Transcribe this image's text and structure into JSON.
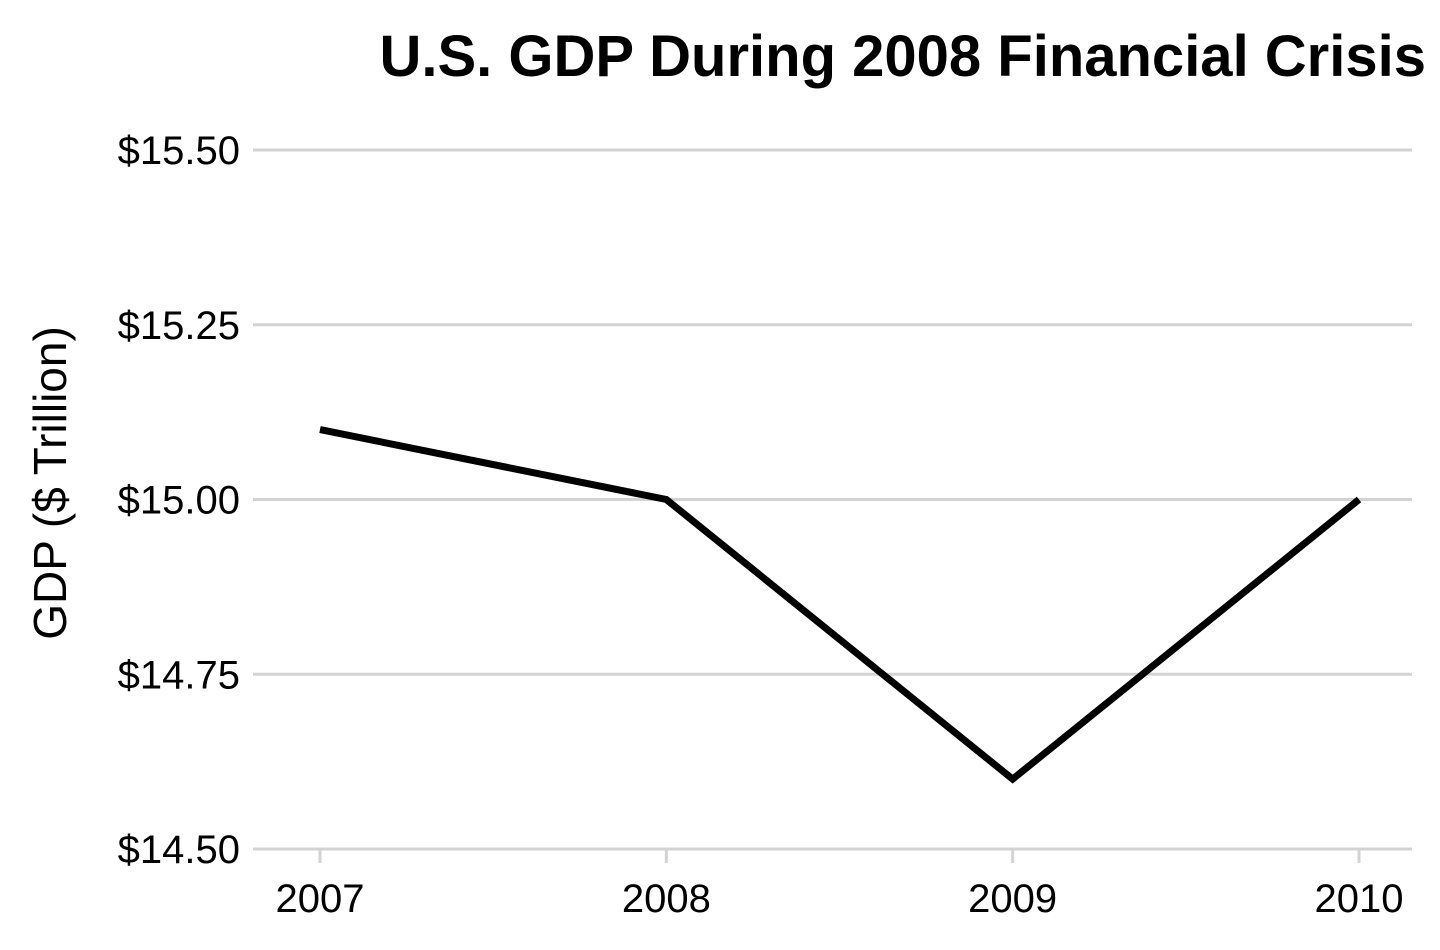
{
  "chart_data": {
    "type": "line",
    "title": "U.S. GDP During 2008 Financial Crisis",
    "xlabel": "",
    "ylabel": "GDP ($ Trillion)",
    "x": [
      2007,
      2008,
      2009,
      2010
    ],
    "x_tick_labels": [
      "2007",
      "2008",
      "2009",
      "2010"
    ],
    "y_ticks": [
      14.5,
      14.75,
      15.0,
      15.25,
      15.5
    ],
    "y_tick_labels": [
      "$14.50",
      "$14.75",
      "$15.00",
      "$15.25",
      "$15.50"
    ],
    "ylim": [
      14.5,
      15.5
    ],
    "grid": "horizontal",
    "series": [
      {
        "values": [
          15.1,
          15.0,
          14.6,
          15.0
        ],
        "color": "#000000"
      }
    ]
  }
}
